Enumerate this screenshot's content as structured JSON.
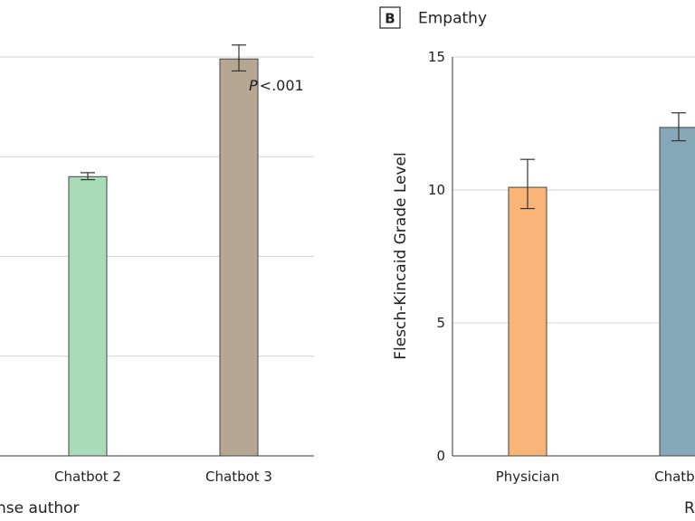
{
  "chart_data": [
    {
      "panel": "",
      "title": "",
      "type": "bar",
      "xlabel": "nse author",
      "ylabel": "",
      "annotation_italic": "P",
      "annotation_rest": "<.001",
      "ylim": [
        0,
        4
      ],
      "grid": true,
      "categories": [
        "Chatbot 2",
        "Chatbot 3"
      ],
      "values": [
        2.8,
        3.98
      ],
      "err_low": [
        2.77,
        3.86
      ],
      "err_high": [
        2.84,
        4.12
      ],
      "colors": [
        "#a8dcb9",
        "#b5a792"
      ]
    },
    {
      "panel": "B",
      "title": "Empathy",
      "type": "bar",
      "xlabel": "R",
      "ylabel": "Flesch-Kincaid Grade Level",
      "ylim": [
        0,
        15
      ],
      "yticks": [
        0,
        5,
        10,
        15
      ],
      "grid": true,
      "categories": [
        "Physician",
        "Chatbo"
      ],
      "values": [
        10.1,
        12.35
      ],
      "err_low": [
        9.3,
        11.85
      ],
      "err_high": [
        11.15,
        12.9
      ],
      "colors": [
        "#f9b578",
        "#86a7b8"
      ]
    }
  ]
}
